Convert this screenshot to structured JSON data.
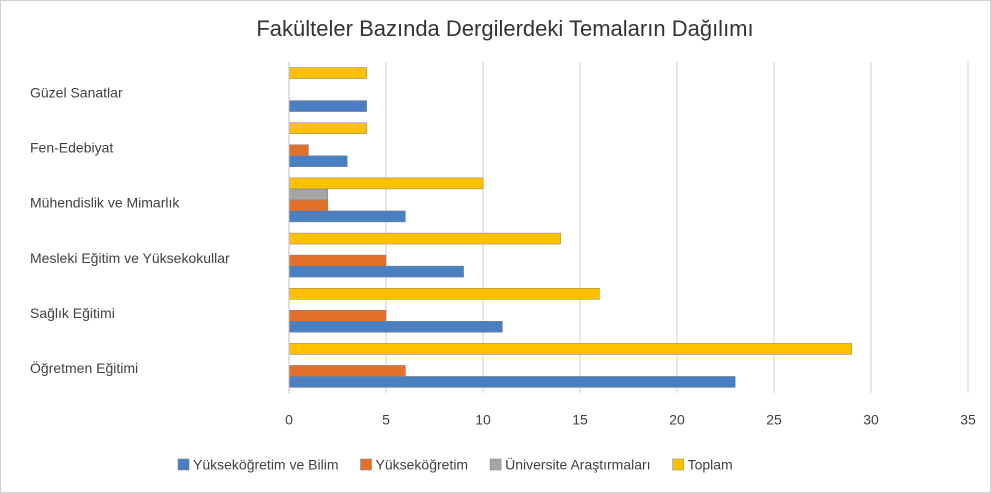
{
  "chart_data": {
    "type": "hbar",
    "title": "Fakülteler Bazında Dergilerdeki Temaların Dağılımı",
    "categories": [
      "Güzel Sanatlar",
      "Fen-Edebiyat",
      "Mühendislik ve Mimarlık",
      "Mesleki Eğitim ve Yüksekokullar",
      "Sağlık Eğitimi",
      "Öğretmen Eğitimi"
    ],
    "series": [
      {
        "name": "Yükseköğretim ve Bilim",
        "color": "#4a7fc1",
        "values": [
          4,
          3,
          6,
          9,
          11,
          23
        ]
      },
      {
        "name": "Yükseköğretim",
        "color": "#e0702a",
        "values": [
          0,
          1,
          2,
          5,
          5,
          6
        ]
      },
      {
        "name": "Üniversite Araştırmaları",
        "color": "#a5a5a5",
        "values": [
          0,
          0,
          2,
          0,
          0,
          0
        ]
      },
      {
        "name": "Toplam",
        "color": "#ffc000",
        "values": [
          4,
          4,
          10,
          14,
          16,
          29
        ]
      }
    ],
    "xlim": [
      0,
      35
    ],
    "xticks": [
      0,
      5,
      10,
      15,
      20,
      25,
      30,
      35
    ],
    "grid": true,
    "legend": "bottom"
  }
}
